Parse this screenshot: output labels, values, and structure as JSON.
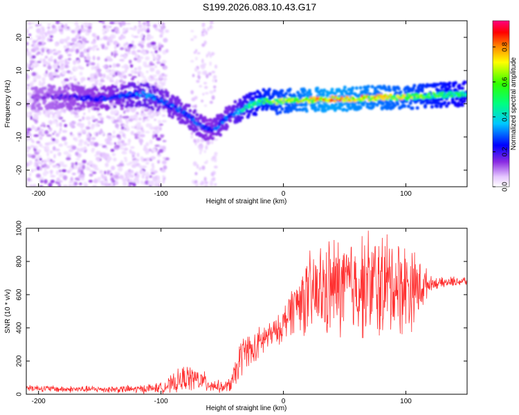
{
  "title": "S199.2026.083.10.43.G17",
  "chart_data": [
    {
      "type": "heatmap",
      "xlabel": "Height of straight line (km)",
      "ylabel": "Frequency (Hz)",
      "xlim": [
        -210,
        150
      ],
      "ylim": [
        -25,
        25
      ],
      "xticks": [
        -200,
        -100,
        0,
        100
      ],
      "yticks": [
        -20,
        -10,
        0,
        10,
        20
      ],
      "colorbar": {
        "label": "Normalized spectral amplitude",
        "range": [
          0,
          0.95
        ],
        "ticks": [
          0.0,
          0.2,
          0.4,
          0.6,
          0.8
        ],
        "tick_labels": [
          "0.0",
          "0.2",
          "0.4",
          "0.6",
          "0.8"
        ]
      },
      "ridge": {
        "x": [
          -195,
          -175,
          -150,
          -130,
          -115,
          -100,
          -90,
          -80,
          -70,
          -60,
          -55,
          -45,
          -35,
          -25,
          -15,
          -5,
          5,
          20,
          40,
          60,
          80,
          100,
          120,
          150
        ],
        "freq": [
          2,
          2,
          1.5,
          2.5,
          3,
          1,
          -1,
          -3,
          -6,
          -8,
          -7,
          -4,
          -2,
          0,
          1,
          0.5,
          1,
          1,
          1.5,
          1.5,
          2,
          2,
          2.5,
          3
        ],
        "amplitude": [
          0.15,
          0.2,
          0.25,
          0.3,
          0.35,
          0.3,
          0.3,
          0.3,
          0.3,
          0.25,
          0.3,
          0.3,
          0.4,
          0.5,
          0.6,
          0.65,
          0.7,
          0.8,
          0.85,
          0.8,
          0.75,
          0.7,
          0.6,
          0.5
        ]
      }
    },
    {
      "type": "line",
      "xlabel": "Height of straight line (km)",
      "ylabel": "SNR (10 * v/v)",
      "xlim": [
        -210,
        150
      ],
      "ylim": [
        0,
        1000
      ],
      "xticks": [
        -200,
        -100,
        0,
        100
      ],
      "yticks": [
        0,
        200,
        400,
        600,
        800,
        1000
      ],
      "series": [
        {
          "name": "SNR",
          "color": "#ff3030",
          "x": [
            -210,
            -180,
            -150,
            -120,
            -100,
            -90,
            -80,
            -70,
            -60,
            -50,
            -45,
            -40,
            -35,
            -30,
            -25,
            -20,
            -15,
            -10,
            -5,
            0,
            5,
            10,
            15,
            20,
            30,
            40,
            50,
            60,
            70,
            80,
            90,
            100,
            110,
            120,
            130,
            140,
            150
          ],
          "y": [
            40,
            30,
            30,
            30,
            40,
            60,
            100,
            90,
            60,
            40,
            50,
            100,
            220,
            280,
            250,
            300,
            340,
            360,
            380,
            420,
            500,
            540,
            580,
            580,
            620,
            640,
            650,
            660,
            660,
            650,
            660,
            650,
            640,
            670,
            670,
            680,
            680
          ],
          "spread": [
            20,
            20,
            20,
            25,
            30,
            60,
            80,
            70,
            50,
            30,
            40,
            80,
            120,
            100,
            100,
            100,
            100,
            80,
            80,
            100,
            150,
            150,
            200,
            250,
            280,
            300,
            300,
            300,
            320,
            330,
            300,
            280,
            200,
            40,
            30,
            30,
            30
          ]
        }
      ]
    }
  ]
}
